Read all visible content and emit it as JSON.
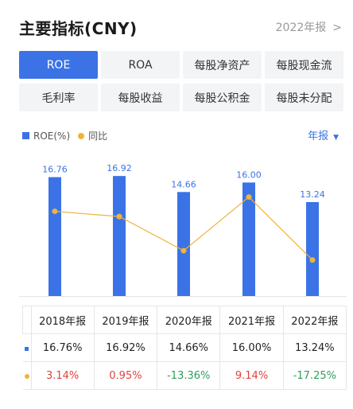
{
  "header": {
    "title": "主要指标(CNY)",
    "report_link": "2022年报",
    "chevron_icon": "chevron-right-icon"
  },
  "tabs": [
    [
      "ROE",
      "ROA",
      "每股净资产",
      "每股现金流"
    ],
    [
      "毛利率",
      "每股收益",
      "每股公积金",
      "每股未分配"
    ]
  ],
  "active_tab": "ROE",
  "legend": {
    "series1": "ROE(%)",
    "series2": "同比"
  },
  "period_select": {
    "value": "年报",
    "icon": "caret-down-icon"
  },
  "colors": {
    "accent": "#3b73e6",
    "line": "#f0b33c",
    "positive": "#e0433d",
    "negative": "#2e9e5b"
  },
  "chart_data": {
    "type": "bar",
    "categories": [
      "2018年报",
      "2019年报",
      "2020年报",
      "2021年报",
      "2022年报"
    ],
    "series": [
      {
        "name": "ROE(%)",
        "type": "bar",
        "values": [
          16.76,
          16.92,
          14.66,
          16.0,
          13.24
        ]
      },
      {
        "name": "同比",
        "type": "line",
        "values": [
          3.14,
          0.95,
          -13.36,
          9.14,
          -17.25
        ]
      }
    ],
    "data_labels": [
      "16.76",
      "16.92",
      "14.66",
      "16.00",
      "13.24"
    ],
    "bar_ylim": [
      0,
      17.5
    ],
    "line_ylim": [
      -25,
      15
    ],
    "legend_position": "top-left"
  },
  "table": {
    "headers": [
      "2018年报",
      "2019年报",
      "2020年报",
      "2021年报",
      "2022年报"
    ],
    "roe_row": [
      "16.76%",
      "16.92%",
      "14.66%",
      "16.00%",
      "13.24%"
    ],
    "yoy_row": [
      "3.14%",
      "0.95%",
      "-13.36%",
      "9.14%",
      "-17.25%"
    ]
  }
}
